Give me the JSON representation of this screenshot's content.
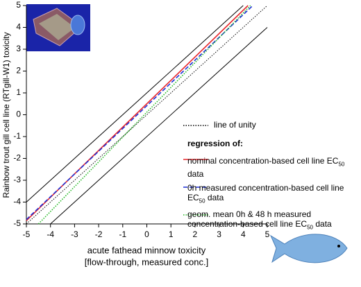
{
  "chart_data": {
    "type": "line",
    "ylabel": "Rainbow trout gill cell line (RTgill-W1) toxicity",
    "xlabel": [
      "acute fathead minnow toxicity",
      "[flow-through, measured conc.]"
    ],
    "legend_title": "regression of:",
    "xlim": [
      -5,
      5
    ],
    "ylim": [
      -5,
      5
    ],
    "xticks": [
      -5,
      -4,
      -3,
      -2,
      -1,
      0,
      1,
      2,
      3,
      4,
      5
    ],
    "yticks": [
      -5,
      -4,
      -3,
      -2,
      -1,
      0,
      1,
      2,
      3,
      4,
      5
    ],
    "bands": [
      {
        "color": "#000000",
        "x": [
          -5,
          4
        ],
        "values": [
          -4,
          5
        ]
      },
      {
        "color": "#000000",
        "x": [
          -4,
          5
        ],
        "values": [
          -5,
          4
        ]
      }
    ],
    "series": [
      {
        "name": "line of unity",
        "color": "#000000",
        "dash": "dotted",
        "x": [
          -5,
          5
        ],
        "values": [
          -5,
          5
        ]
      },
      {
        "name": "nominal concentration-based cell line EC50 data",
        "color": "#e8262b",
        "dash": "solid",
        "x": [
          -5,
          4.2
        ],
        "values": [
          -4.85,
          5
        ]
      },
      {
        "name": "0h measured concentration-based cell line EC50 data",
        "color": "#1b2fd6",
        "dash": "dashed",
        "x": [
          -5,
          4.4
        ],
        "values": [
          -4.8,
          5
        ]
      },
      {
        "name": "geom. mean 0h & 48 h measured concentration-based cell line EC50 data",
        "color": "#22b822",
        "dash": "dotted",
        "x": [
          -4.5,
          4.3
        ],
        "values": [
          -5,
          5
        ]
      }
    ]
  }
}
